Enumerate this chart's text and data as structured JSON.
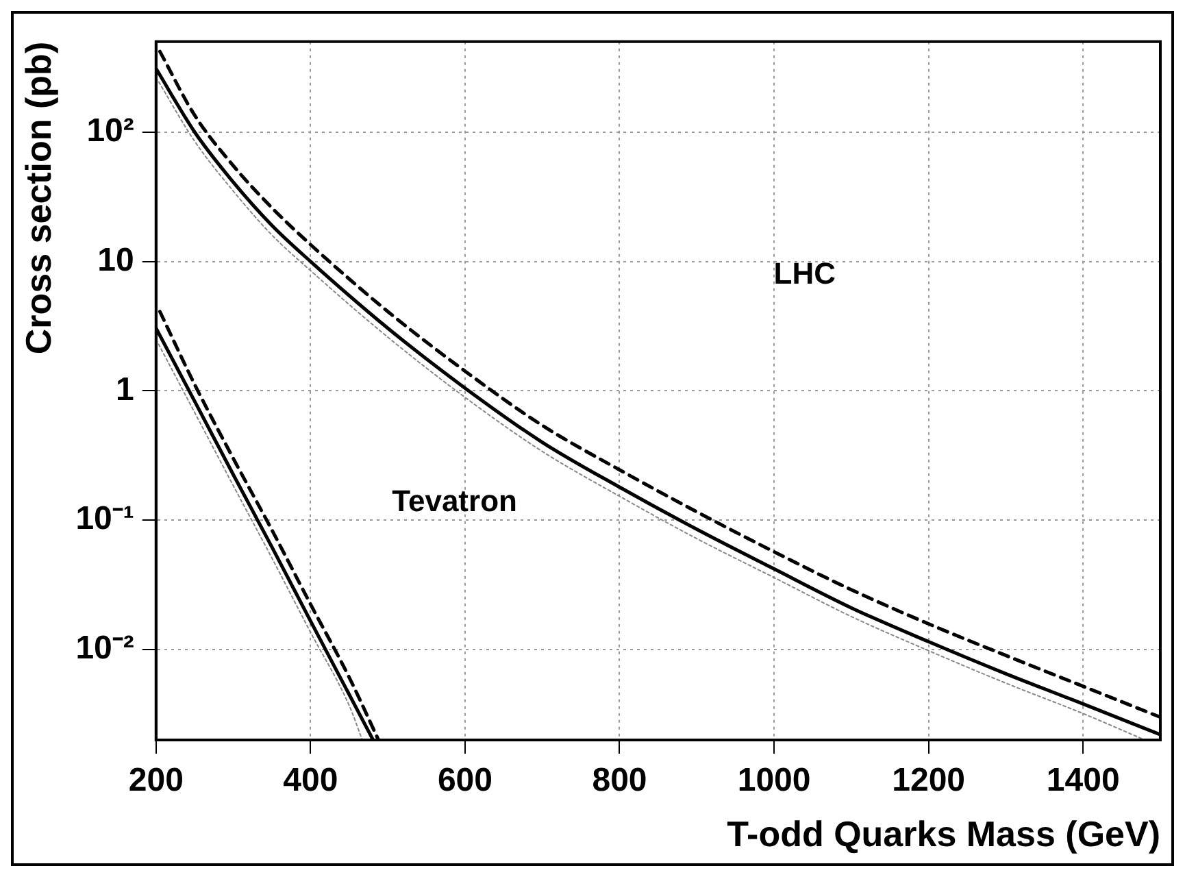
{
  "chart_data": {
    "type": "line",
    "xlabel": "T-odd Quarks Mass (GeV)",
    "ylabel": "Cross section (pb)",
    "log": "y",
    "grid": true,
    "marker": "none",
    "xlim": [
      200,
      1500
    ],
    "xticks": [
      200,
      400,
      600,
      800,
      1000,
      1200,
      1400
    ],
    "ylim": [
      0.002,
      500
    ],
    "yticks": [
      {
        "value": 0.01,
        "label": "10⁻²"
      },
      {
        "value": 0.1,
        "label": "10⁻¹"
      },
      1,
      10,
      {
        "value": 100,
        "label": "10²"
      }
    ],
    "series": [
      {
        "color": "#000000",
        "line_style": "solid",
        "x": [
          200,
          250,
          300,
          350,
          400,
          500,
          600,
          700,
          800,
          900,
          1000,
          1100,
          1200,
          1300,
          1400,
          1500
        ],
        "values": [
          310,
          100,
          41,
          19,
          10,
          3.05,
          1.05,
          0.4,
          0.18,
          0.085,
          0.042,
          0.021,
          0.0115,
          0.0065,
          0.0038,
          0.0022
        ]
      },
      {
        "color": "#000000",
        "line_style": "dashed",
        "x": [
          205,
          250,
          300,
          350,
          400,
          500,
          600,
          700,
          800,
          900,
          1000,
          1100,
          1200,
          1300,
          1400,
          1500
        ],
        "values": [
          420,
          135,
          55,
          26,
          13.5,
          4.1,
          1.42,
          0.54,
          0.245,
          0.116,
          0.057,
          0.029,
          0.0158,
          0.009,
          0.0052,
          0.003
        ]
      },
      {
        "color": "#888888",
        "line_style": "dotted",
        "x": [
          200,
          250,
          300,
          350,
          400,
          500,
          600,
          700,
          800,
          900,
          1000,
          1100,
          1200,
          1300,
          1400,
          1480
        ],
        "values": [
          265,
          85,
          35,
          16,
          8.5,
          2.6,
          0.89,
          0.34,
          0.153,
          0.072,
          0.036,
          0.018,
          0.0098,
          0.0055,
          0.0032,
          0.002
        ]
      },
      {
        "color": "#000000",
        "line_style": "solid",
        "x": [
          200,
          250,
          300,
          350,
          400,
          450,
          481
        ],
        "values": [
          3.05,
          0.83,
          0.225,
          0.062,
          0.0166,
          0.0045,
          0.002
        ]
      },
      {
        "color": "#000000",
        "line_style": "dashed",
        "x": [
          205,
          250,
          300,
          350,
          400,
          450,
          488
        ],
        "values": [
          4.1,
          1.12,
          0.3,
          0.084,
          0.0224,
          0.0061,
          0.002
        ]
      },
      {
        "color": "#888888",
        "line_style": "dotted",
        "x": [
          200,
          250,
          300,
          350,
          400,
          450,
          467
        ],
        "values": [
          2.5,
          0.68,
          0.185,
          0.051,
          0.0136,
          0.0037,
          0.002
        ]
      }
    ],
    "annotations": [
      "LHC",
      "Tevatron"
    ]
  }
}
